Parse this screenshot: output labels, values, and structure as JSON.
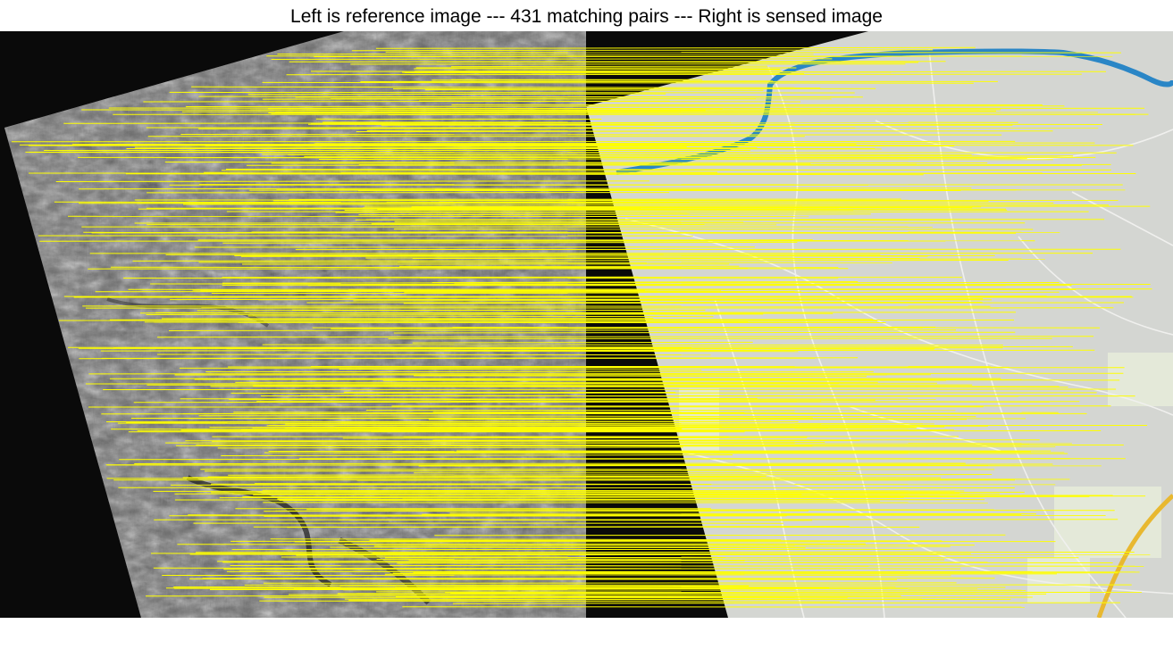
{
  "title": "Left is reference image --- 431 matching pairs --- Right is sensed image",
  "matching_pairs": 431,
  "panels": {
    "left": {
      "description": "reference image",
      "kind": "grayscale satellite image"
    },
    "right": {
      "description": "sensed image",
      "kind": "map rendering"
    }
  },
  "colors": {
    "match_line": "#ffff00",
    "background": "#0a0a0a",
    "map_land": "#d4d6d2",
    "map_river": "#2a86c6",
    "map_road": "#f0f0ee",
    "map_highway": "#e8b830",
    "map_built_up": "#e4e9d9"
  }
}
